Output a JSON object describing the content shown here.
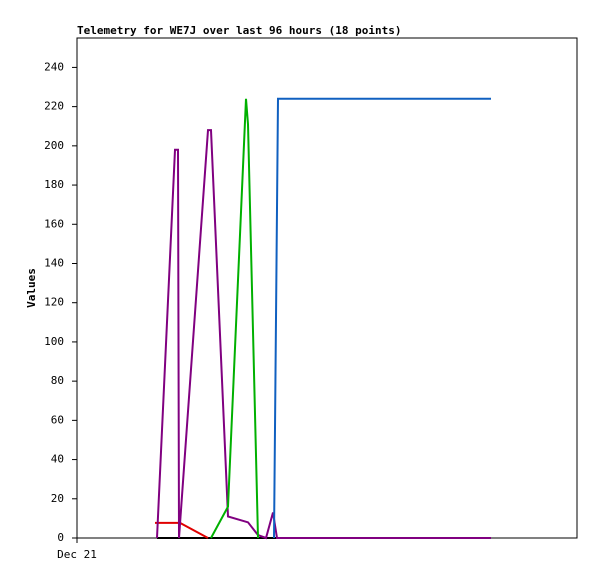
{
  "chart_data": {
    "type": "line",
    "title": "Telemetry for WE7J over last 96 hours (18 points)",
    "y_label": "Values",
    "xlim": [
      0,
      100
    ],
    "xticks": [
      {
        "value": 0,
        "label": "Dec 21"
      }
    ],
    "ylim": [
      0,
      255
    ],
    "yticks": [
      0,
      20,
      40,
      60,
      80,
      100,
      120,
      140,
      160,
      180,
      200,
      220,
      240
    ],
    "grid": false,
    "series": [
      {
        "color": "#000000",
        "x": [
          16,
          82.8
        ],
        "values": [
          0,
          0
        ]
      },
      {
        "color": "#e00000",
        "x": [
          15.6,
          20.6,
          26.2
        ],
        "values": [
          7.7,
          7.7,
          0
        ]
      },
      {
        "color": "#800080",
        "x": [
          16,
          19.6,
          20.2,
          20.4,
          26.2,
          26.8,
          30.2,
          34.2,
          36.2,
          37.8,
          39.2,
          40,
          82.8
        ],
        "values": [
          0,
          198,
          198,
          0,
          208,
          208,
          11,
          8,
          1.5,
          0,
          13,
          0,
          0
        ]
      },
      {
        "color": "#00b000",
        "x": [
          26.8,
          30.2,
          33.8,
          34.2,
          36.2
        ],
        "values": [
          0,
          16,
          224,
          211,
          0
        ]
      },
      {
        "color": "#1060c0",
        "x": [
          39.4,
          40.2,
          82.8
        ],
        "values": [
          0,
          224,
          224
        ]
      }
    ]
  }
}
